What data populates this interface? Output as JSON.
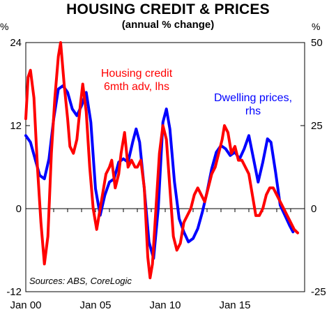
{
  "title": "HOUSING CREDIT & PRICES",
  "subtitle": "(annual % change)",
  "left_unit": "%",
  "right_unit": "%",
  "chart_data": {
    "type": "line",
    "title": "HOUSING CREDIT & PRICES",
    "subtitle": "(annual % change)",
    "x_range": [
      "2000-01",
      "2019-12"
    ],
    "x_ticks": [
      "Jan 00",
      "Jan 05",
      "Jan 10",
      "Jan 15"
    ],
    "y_left": {
      "unit": "%",
      "range": [
        -12,
        24
      ],
      "ticks": [
        -12,
        0,
        12,
        24
      ]
    },
    "y_right": {
      "unit": "%",
      "range": [
        -25,
        50
      ],
      "ticks": [
        -25,
        0,
        25,
        50
      ]
    },
    "grid": false,
    "series": [
      {
        "name": "Housing credit 6mth adv, lhs",
        "label": [
          "Housing credit",
          "6mth adv, lhs"
        ],
        "axis": "left",
        "color": "#ff0000",
        "points": [
          [
            "2000-01",
            13
          ],
          [
            "2000-03",
            19
          ],
          [
            "2000-05",
            20
          ],
          [
            "2000-08",
            16
          ],
          [
            "2000-11",
            6
          ],
          [
            "2001-02",
            -2
          ],
          [
            "2001-05",
            -8
          ],
          [
            "2001-08",
            -4
          ],
          [
            "2001-11",
            8
          ],
          [
            "2002-02",
            16
          ],
          [
            "2002-05",
            22
          ],
          [
            "2002-07",
            24
          ],
          [
            "2002-10",
            18
          ],
          [
            "2003-01",
            13
          ],
          [
            "2003-03",
            9
          ],
          [
            "2003-06",
            8
          ],
          [
            "2003-09",
            10
          ],
          [
            "2003-12",
            15
          ],
          [
            "2004-02",
            18
          ],
          [
            "2004-05",
            14
          ],
          [
            "2004-08",
            6
          ],
          [
            "2004-11",
            0
          ],
          [
            "2005-02",
            -3
          ],
          [
            "2005-04",
            -1
          ],
          [
            "2005-07",
            2
          ],
          [
            "2005-10",
            5
          ],
          [
            "2006-01",
            6
          ],
          [
            "2006-03",
            7
          ],
          [
            "2006-06",
            3
          ],
          [
            "2006-09",
            5
          ],
          [
            "2006-11",
            8
          ],
          [
            "2007-02",
            11
          ],
          [
            "2007-05",
            6
          ],
          [
            "2007-08",
            7
          ],
          [
            "2007-11",
            6
          ],
          [
            "2008-01",
            6
          ],
          [
            "2008-04",
            7
          ],
          [
            "2008-07",
            3
          ],
          [
            "2008-10",
            -7
          ],
          [
            "2008-12",
            -10
          ],
          [
            "2009-02",
            -8
          ],
          [
            "2009-05",
            0
          ],
          [
            "2009-08",
            8
          ],
          [
            "2009-11",
            12
          ],
          [
            "2010-02",
            10
          ],
          [
            "2010-05",
            3
          ],
          [
            "2010-08",
            -4
          ],
          [
            "2010-11",
            -6
          ],
          [
            "2011-02",
            -5
          ],
          [
            "2011-05",
            -2
          ],
          [
            "2011-08",
            -1
          ],
          [
            "2011-11",
            0
          ],
          [
            "2012-02",
            2
          ],
          [
            "2012-05",
            3
          ],
          [
            "2012-08",
            2
          ],
          [
            "2012-11",
            1
          ],
          [
            "2013-02",
            3
          ],
          [
            "2013-05",
            5
          ],
          [
            "2013-08",
            6
          ],
          [
            "2013-11",
            8
          ],
          [
            "2014-02",
            10
          ],
          [
            "2014-04",
            12
          ],
          [
            "2014-07",
            11
          ],
          [
            "2014-10",
            8
          ],
          [
            "2015-01",
            9
          ],
          [
            "2015-04",
            7
          ],
          [
            "2015-07",
            7
          ],
          [
            "2015-10",
            6
          ],
          [
            "2016-01",
            5
          ],
          [
            "2016-04",
            2
          ],
          [
            "2016-07",
            -1
          ],
          [
            "2016-10",
            -1
          ],
          [
            "2017-01",
            0
          ],
          [
            "2017-04",
            2
          ],
          [
            "2017-07",
            3
          ],
          [
            "2017-10",
            3
          ],
          [
            "2018-01",
            2
          ],
          [
            "2018-04",
            1
          ],
          [
            "2018-07",
            0
          ],
          [
            "2018-10",
            -1
          ],
          [
            "2019-01",
            -2
          ],
          [
            "2019-04",
            -3
          ],
          [
            "2019-07",
            -3.5
          ]
        ]
      },
      {
        "name": "Dwelling prices, rhs",
        "label": [
          "Dwelling prices,",
          "rhs"
        ],
        "axis": "right",
        "color": "#0000ff",
        "points": [
          [
            "2000-01",
            22
          ],
          [
            "2000-05",
            20
          ],
          [
            "2000-09",
            15
          ],
          [
            "2001-01",
            10
          ],
          [
            "2001-05",
            9
          ],
          [
            "2001-09",
            15
          ],
          [
            "2002-01",
            27
          ],
          [
            "2002-05",
            36
          ],
          [
            "2002-09",
            37
          ],
          [
            "2003-01",
            35
          ],
          [
            "2003-05",
            30
          ],
          [
            "2003-09",
            28
          ],
          [
            "2004-01",
            31
          ],
          [
            "2004-05",
            35
          ],
          [
            "2004-09",
            26
          ],
          [
            "2005-01",
            6
          ],
          [
            "2005-05",
            -2
          ],
          [
            "2005-09",
            4
          ],
          [
            "2006-01",
            8
          ],
          [
            "2006-05",
            9
          ],
          [
            "2006-09",
            14
          ],
          [
            "2007-01",
            15
          ],
          [
            "2007-05",
            14
          ],
          [
            "2007-09",
            20
          ],
          [
            "2007-12",
            24
          ],
          [
            "2008-03",
            20
          ],
          [
            "2008-07",
            6
          ],
          [
            "2008-11",
            -10
          ],
          [
            "2009-03",
            -15
          ],
          [
            "2009-07",
            0
          ],
          [
            "2009-11",
            26
          ],
          [
            "2010-02",
            30
          ],
          [
            "2010-05",
            24
          ],
          [
            "2010-09",
            8
          ],
          [
            "2011-01",
            -3
          ],
          [
            "2011-05",
            -7
          ],
          [
            "2011-09",
            -10
          ],
          [
            "2012-01",
            -9
          ],
          [
            "2012-05",
            -6
          ],
          [
            "2012-09",
            -1
          ],
          [
            "2013-01",
            5
          ],
          [
            "2013-05",
            12
          ],
          [
            "2013-09",
            17
          ],
          [
            "2014-01",
            19
          ],
          [
            "2014-05",
            18
          ],
          [
            "2014-09",
            16
          ],
          [
            "2015-01",
            17
          ],
          [
            "2015-05",
            15
          ],
          [
            "2015-09",
            18
          ],
          [
            "2016-01",
            22
          ],
          [
            "2016-05",
            15
          ],
          [
            "2016-09",
            8
          ],
          [
            "2017-01",
            14
          ],
          [
            "2017-05",
            21
          ],
          [
            "2017-08",
            20
          ],
          [
            "2017-12",
            11
          ],
          [
            "2018-04",
            1
          ],
          [
            "2018-08",
            -2
          ],
          [
            "2018-12",
            -5
          ],
          [
            "2019-03",
            -7
          ]
        ]
      }
    ],
    "annotations": [
      "Sources: ABS, CoreLogic"
    ]
  }
}
